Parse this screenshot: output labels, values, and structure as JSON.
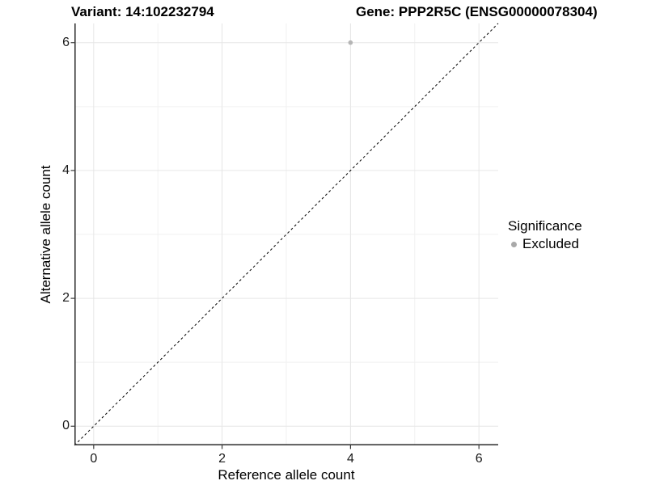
{
  "chart_data": {
    "type": "scatter",
    "title_left": "Variant: 14:102232794",
    "title_right": "Gene: PPP2R5C (ENSG00000078304)",
    "xlabel": "Reference allele count",
    "ylabel": "Alternative allele count",
    "xlim": [
      -0.3,
      6.3
    ],
    "ylim": [
      -0.3,
      6.3
    ],
    "xticks": [
      0,
      2,
      4,
      6
    ],
    "yticks": [
      0,
      2,
      4,
      6
    ],
    "grid_minor": [
      1,
      3,
      5
    ],
    "grid": "on",
    "points": [
      {
        "x": 4,
        "y": 6,
        "significance": "Excluded"
      }
    ],
    "reference_line": {
      "type": "identity",
      "equation": "y = x",
      "style": "dashed",
      "from": [
        -0.3,
        -0.3
      ],
      "to": [
        6.3,
        6.3
      ]
    },
    "legend": {
      "title": "Significance",
      "position": "right",
      "entries": [
        {
          "label": "Excluded",
          "marker": "circle",
          "color": "#A9A9A9"
        }
      ]
    },
    "colors": {
      "point": "#B5B5B5",
      "grid_major": "#E6E6E6",
      "grid_minor": "#F1F1F1",
      "axis": "#3A3A3A",
      "reference_line": "#000000",
      "background": "#FFFFFF"
    }
  }
}
